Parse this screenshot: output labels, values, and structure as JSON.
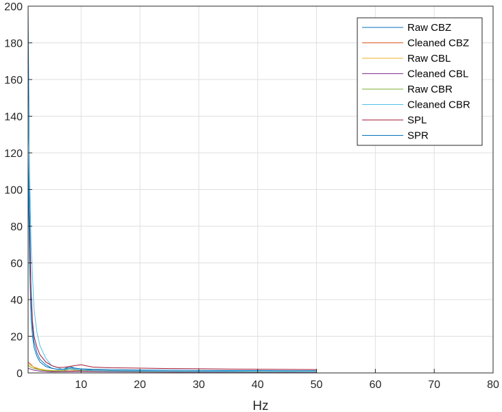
{
  "chart_data": {
    "type": "line",
    "title": "",
    "xlabel": "Hz",
    "ylabel": "",
    "xlim": [
      1,
      80
    ],
    "ylim": [
      0,
      200
    ],
    "xticks": [
      10,
      20,
      30,
      40,
      50,
      60,
      70,
      80
    ],
    "yticks": [
      0,
      20,
      40,
      60,
      80,
      100,
      120,
      140,
      160,
      180,
      200
    ],
    "grid": true,
    "legend_position": "top-right",
    "series": [
      {
        "name": "Raw CBZ",
        "color": "#0072BD",
        "x": [
          1,
          1.25,
          1.5,
          1.75,
          2,
          2.5,
          3,
          4,
          5,
          6,
          7,
          8,
          9,
          10,
          12,
          15,
          20,
          25,
          30,
          35,
          40,
          45,
          50
        ],
        "y": [
          200,
          90,
          42,
          25,
          17,
          11,
          7.5,
          4.5,
          2.6,
          1.9,
          1.9,
          3.6,
          2.6,
          2.2,
          1.6,
          1.3,
          1.1,
          1.0,
          0.9,
          0.9,
          0.8,
          0.8,
          0.7
        ]
      },
      {
        "name": "Cleaned CBZ",
        "color": "#D95319",
        "x": [
          1,
          2,
          3,
          5,
          10,
          20,
          30,
          40,
          50
        ],
        "y": [
          6,
          3,
          1.6,
          0.9,
          1.2,
          0.7,
          0.6,
          0.5,
          0.5
        ]
      },
      {
        "name": "Raw CBL",
        "color": "#EDB120",
        "x": [
          1,
          1.5,
          2,
          3,
          4,
          5,
          7,
          8,
          10,
          15,
          20,
          30,
          40,
          50
        ],
        "y": [
          5,
          4,
          3.2,
          2.2,
          1.6,
          1.3,
          1.3,
          2.4,
          1.6,
          1.1,
          0.9,
          0.8,
          0.7,
          0.6
        ]
      },
      {
        "name": "Cleaned CBL",
        "color": "#7E2F8E",
        "x": [
          1,
          2,
          3,
          5,
          10,
          20,
          30,
          40,
          50
        ],
        "y": [
          2.5,
          1.5,
          1.0,
          0.6,
          0.8,
          0.5,
          0.4,
          0.4,
          0.4
        ]
      },
      {
        "name": "Raw CBR",
        "color": "#77AC30",
        "x": [
          1,
          1.5,
          2,
          3,
          4,
          5,
          7,
          8,
          10,
          15,
          20,
          30,
          40,
          50
        ],
        "y": [
          4,
          3,
          2.4,
          1.7,
          1.3,
          1.1,
          1.1,
          2.0,
          1.4,
          1.0,
          0.8,
          0.7,
          0.6,
          0.6
        ]
      },
      {
        "name": "Cleaned CBR",
        "color": "#4DBEEE",
        "x": [
          1,
          1.5,
          2,
          2.5,
          3,
          4,
          5,
          7,
          8,
          9,
          10,
          12,
          15,
          20,
          30,
          40,
          50
        ],
        "y": [
          150,
          70,
          35,
          22,
          15,
          8,
          4,
          1.8,
          2.2,
          2.0,
          1.6,
          1.3,
          1.1,
          1.0,
          0.8,
          0.8,
          0.7
        ]
      },
      {
        "name": "SPL",
        "color": "#A2142F",
        "x": [
          1,
          1.25,
          1.5,
          1.75,
          2,
          2.5,
          3,
          4,
          5,
          6,
          7,
          8,
          9,
          10,
          11,
          12,
          15,
          20,
          25,
          30,
          35,
          40,
          45,
          50
        ],
        "y": [
          100,
          75,
          45,
          28,
          20,
          14,
          10,
          6,
          4,
          3,
          3,
          3.5,
          4,
          4.5,
          3.8,
          3.2,
          2.8,
          2.6,
          2.4,
          2.3,
          2.1,
          2.0,
          1.9,
          1.8
        ]
      },
      {
        "name": "SPR",
        "color": "#0072BD",
        "x": [
          1,
          1.25,
          1.5,
          1.75,
          2,
          2.5,
          3,
          4,
          5,
          6,
          7,
          8,
          9,
          10,
          12,
          15,
          20,
          25,
          30,
          35,
          40,
          45,
          50
        ],
        "y": [
          120,
          60,
          30,
          20,
          14,
          9,
          6,
          3.5,
          2.5,
          2,
          2,
          2.8,
          2.5,
          2.2,
          2.0,
          1.8,
          1.6,
          1.5,
          1.4,
          1.3,
          1.3,
          1.2,
          1.2
        ]
      }
    ]
  }
}
